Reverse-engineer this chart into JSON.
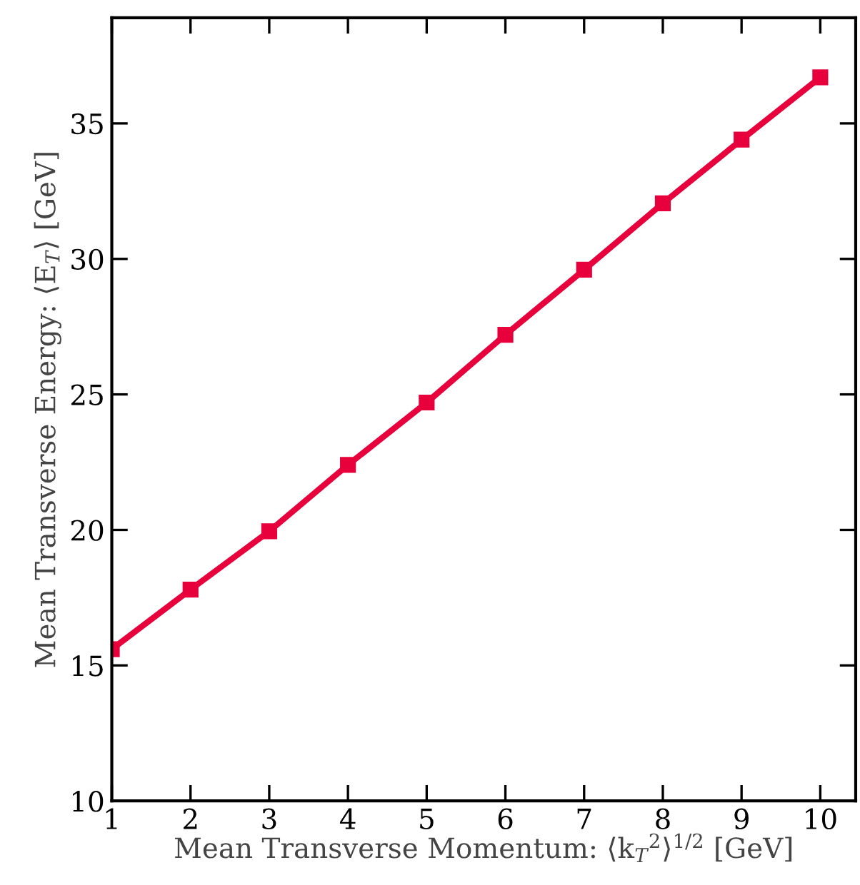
{
  "chart_data": {
    "type": "line",
    "xlabel": "Mean Transverse Momentum: ⟨k$_{T}$$^{2}$⟩$^{1/2}$ [GeV]",
    "ylabel": "Mean Transverse Energy: ⟨E$_{T}$⟩ [GeV]",
    "x": [
      1,
      2,
      3,
      4,
      5,
      6,
      7,
      8,
      9,
      10
    ],
    "series": [
      {
        "color": "#e8003d",
        "values": [
          15.6,
          17.8,
          19.95,
          22.4,
          24.7,
          27.2,
          29.6,
          32.05,
          34.4,
          36.7
        ]
      }
    ],
    "xlim": [
      1,
      10.45
    ],
    "ylim": [
      10,
      38.9
    ],
    "xticks": [
      1,
      2,
      3,
      4,
      5,
      6,
      7,
      8,
      9,
      10
    ],
    "yticks": [
      10,
      15,
      20,
      25,
      30,
      35
    ],
    "grid": false,
    "legend": false,
    "marker": "square",
    "line_style": "solid"
  }
}
